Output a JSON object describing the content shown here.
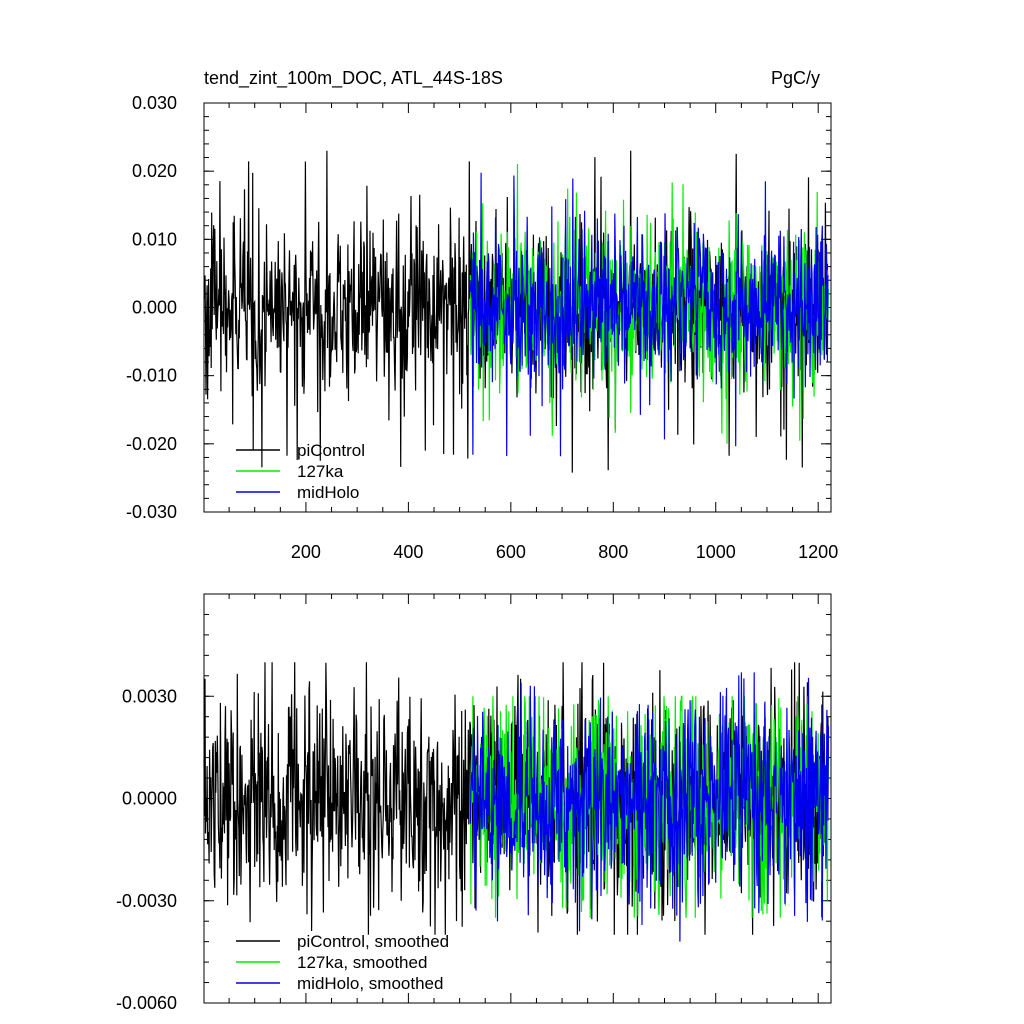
{
  "title_left": "tend_zint_100m_DOC, ATL_44S-18S",
  "title_right": "PgC/y",
  "colors": {
    "piControl": "#000000",
    "127ka": "#00ee00",
    "midHolo": "#0000ee"
  },
  "chart_data": [
    {
      "type": "line",
      "panel": "top",
      "title": "tend_zint_100m_DOC, ATL_44S-18S",
      "units": "PgC/y",
      "xlim": [
        1,
        1225
      ],
      "ylim": [
        -0.03,
        0.03
      ],
      "x_ticks": [
        200,
        400,
        600,
        800,
        1000,
        1200
      ],
      "x_tick_labels": [
        "200",
        "400",
        "600",
        "800",
        "1000",
        "1200"
      ],
      "y_ticks": [
        -0.03,
        -0.02,
        -0.01,
        0.0,
        0.01,
        0.02,
        0.03
      ],
      "y_tick_labels": [
        "-0.030",
        "-0.020",
        "-0.010",
        "0.000",
        "0.010",
        "0.020",
        "0.030"
      ],
      "legend_position": "bottom-left",
      "legend": [
        "piControl",
        "127ka",
        "midHolo"
      ],
      "series": [
        {
          "name": "piControl",
          "x_range": [
            1,
            1220
          ],
          "noise_std": 0.006,
          "max": 0.023,
          "min": -0.025
        },
        {
          "name": "127ka",
          "x_range": [
            521,
            1220
          ],
          "noise_std": 0.006,
          "max": 0.0225,
          "min": -0.02
        },
        {
          "name": "midHolo",
          "x_range": [
            521,
            1220
          ],
          "noise_std": 0.006,
          "max": 0.022,
          "min": -0.022
        }
      ]
    },
    {
      "type": "line",
      "panel": "bottom",
      "xlim": [
        1,
        1225
      ],
      "ylim": [
        -0.006,
        0.006
      ],
      "x_ticks": [
        200,
        400,
        600,
        800,
        1000,
        1200
      ],
      "y_ticks": [
        -0.006,
        -0.003,
        0.0,
        0.003
      ],
      "y_tick_labels": [
        "-0.0060",
        "-0.0030",
        "0.0000",
        "0.0030"
      ],
      "legend_position": "bottom-left",
      "legend": [
        "piControl, smoothed",
        "127ka, smoothed",
        "midHolo, smoothed"
      ],
      "series": [
        {
          "name": "piControl, smoothed",
          "x_range": [
            1,
            1220
          ],
          "noise_std": 0.0015,
          "max": 0.004,
          "min": -0.004
        },
        {
          "name": "127ka, smoothed",
          "x_range": [
            521,
            1220
          ],
          "noise_std": 0.0015,
          "max": 0.003,
          "min": -0.0035
        },
        {
          "name": "midHolo, smoothed",
          "x_range": [
            521,
            1220
          ],
          "noise_std": 0.0015,
          "max": 0.0037,
          "min": -0.0042
        }
      ]
    }
  ]
}
